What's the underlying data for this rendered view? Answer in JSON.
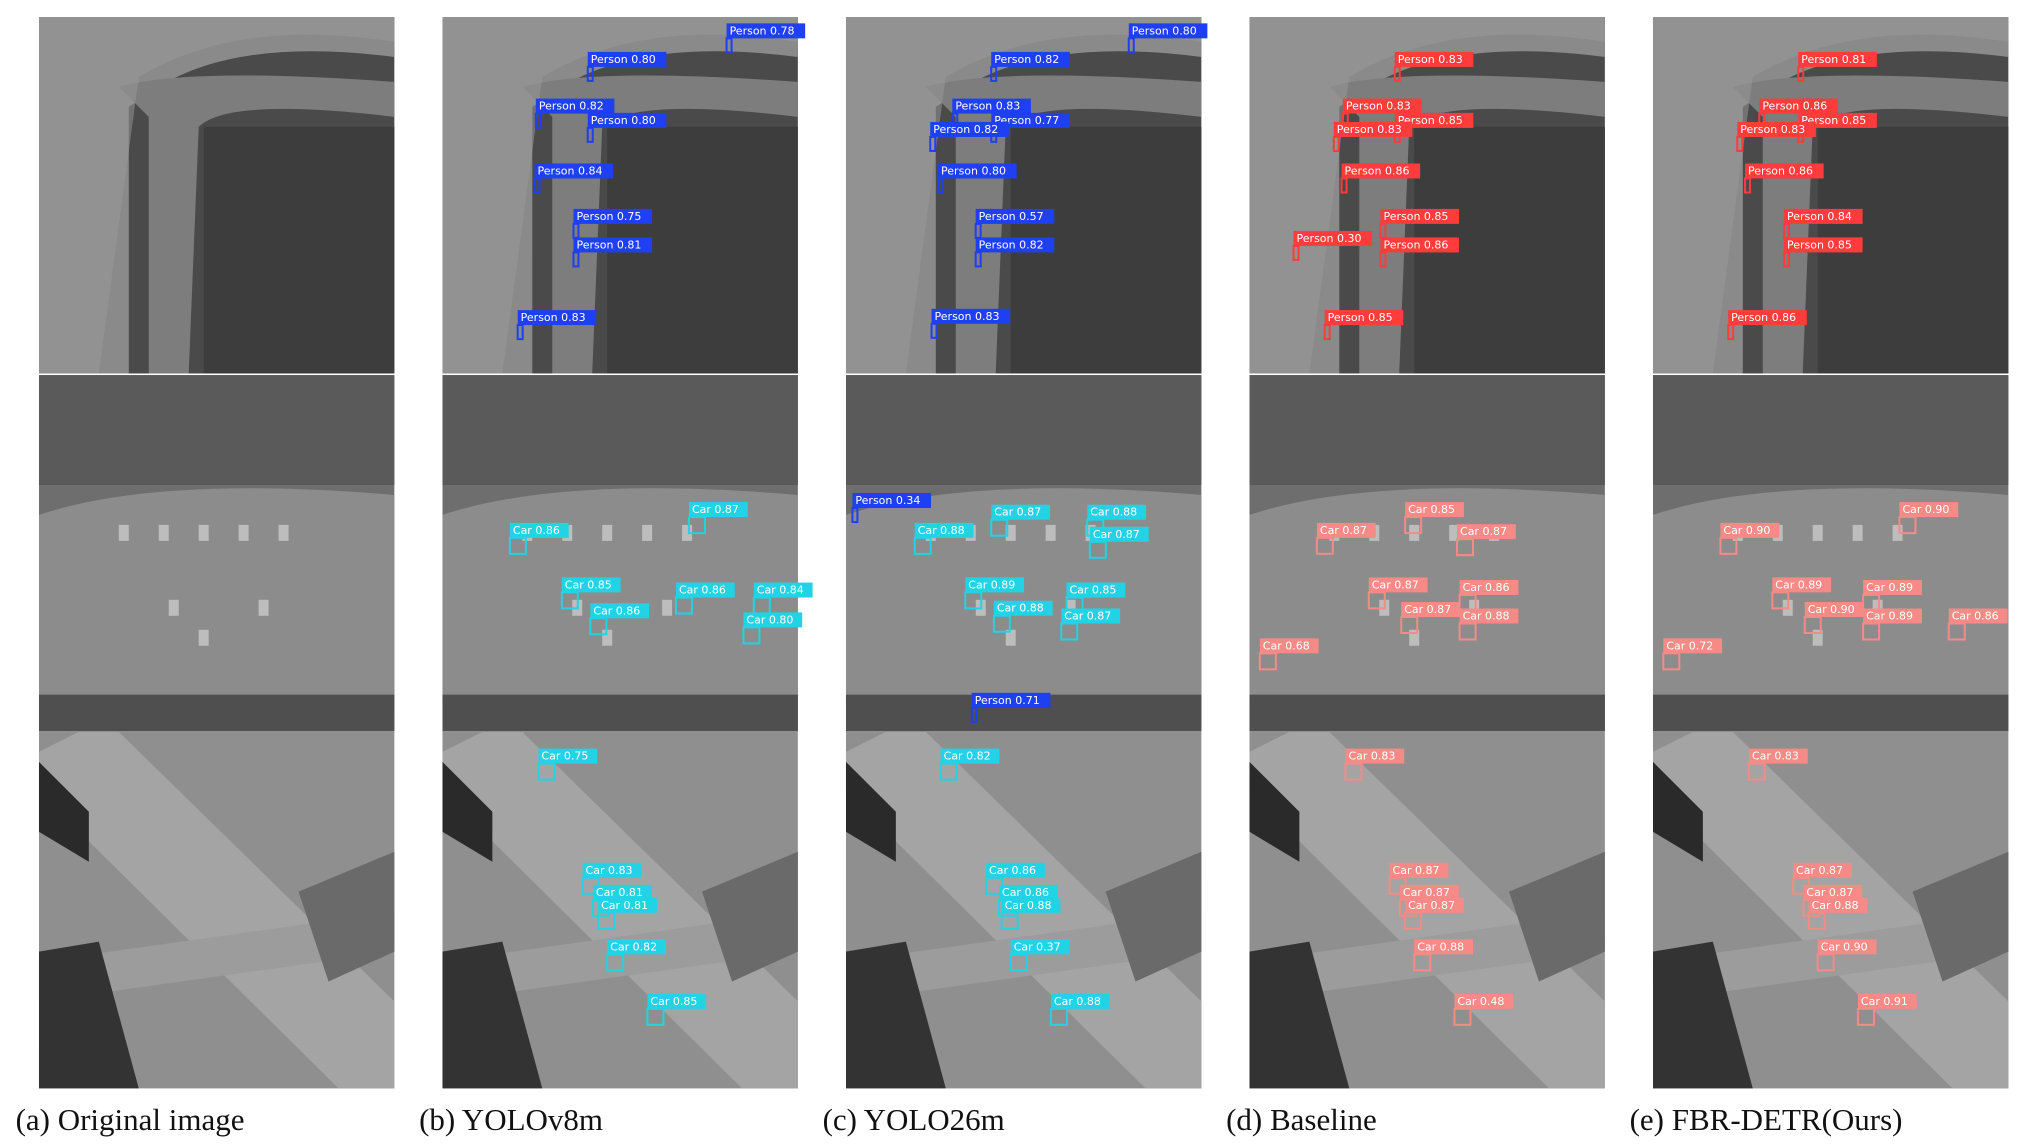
{
  "panels": [
    {
      "caption": "(a) Original image",
      "detections": [
        [],
        [],
        []
      ]
    },
    {
      "caption": "(b) YOLOv8m",
      "detections": [
        [
          "Person 0.78",
          "Person 0.80",
          "Person 0.82",
          "Person 0.80",
          "Person 0.84",
          "Person 0.75",
          "Person 0.81",
          "Person 0.83"
        ],
        [
          "Car 0.86",
          "Car 0.85",
          "Car 0.86",
          "Car 0.87",
          "Car 0.86",
          "Car 0.84",
          "Car 0.80"
        ],
        [
          "Car 0.75",
          "Car 0.83",
          "Car 0.81",
          "Car 0.81",
          "Car 0.82",
          "Car 0.85"
        ]
      ]
    },
    {
      "caption": "(c) YOLO26m",
      "detections": [
        [
          "Person 0.80",
          "Person 0.82",
          "Person 0.83",
          "Person 0.77",
          "Person 0.82",
          "Person 0.80",
          "Person 0.57",
          "Person 0.82",
          "Person 0.83"
        ],
        [
          "Person 0.34",
          "Car 0.88",
          "Car 0.87",
          "Car 0.88",
          "Car 0.87",
          "Car 0.89",
          "Car 0.88",
          "Car 0.85",
          "Car 0.87",
          "Person 0.71"
        ],
        [
          "Car 0.82",
          "Car 0.86",
          "Car 0.86",
          "Car 0.88",
          "Car 0.37",
          "Car 0.88"
        ]
      ]
    },
    {
      "caption": "(d) Baseline",
      "detections": [
        [
          "Person 0.83",
          "Person 0.83",
          "Person 0.85",
          "Person 0.83",
          "Person 0.86",
          "Person 0.85",
          "Person 0.30",
          "Person 0.86",
          "Person 0.85"
        ],
        [
          "Car 0.87",
          "Car 0.85",
          "Car 0.87",
          "Car 0.87",
          "Car 0.86",
          "Car 0.87",
          "Car 0.88",
          "Car 0.68"
        ],
        [
          "Car 0.83",
          "Car 0.87",
          "Car 0.87",
          "Car 0.87",
          "Car 0.88",
          "Car 0.48"
        ]
      ]
    },
    {
      "caption": "(e) FBR-DETR(Ours)",
      "detections": [
        [
          "Person 0.81",
          "Person 0.86",
          "Person 0.85",
          "Person 0.83",
          "Person 0.86",
          "Person 0.84",
          "Person 0.85",
          "Person 0.86"
        ],
        [
          "Car 0.90",
          "Car 0.90",
          "Car 0.89",
          "Car 0.89",
          "Car 0.90",
          "Car 0.89",
          "Car 0.86",
          "Car 0.72"
        ],
        [
          "Car 0.83",
          "Car 0.87",
          "Car 0.87",
          "Car 0.88",
          "Car 0.90",
          "Car 0.91"
        ]
      ]
    }
  ]
}
